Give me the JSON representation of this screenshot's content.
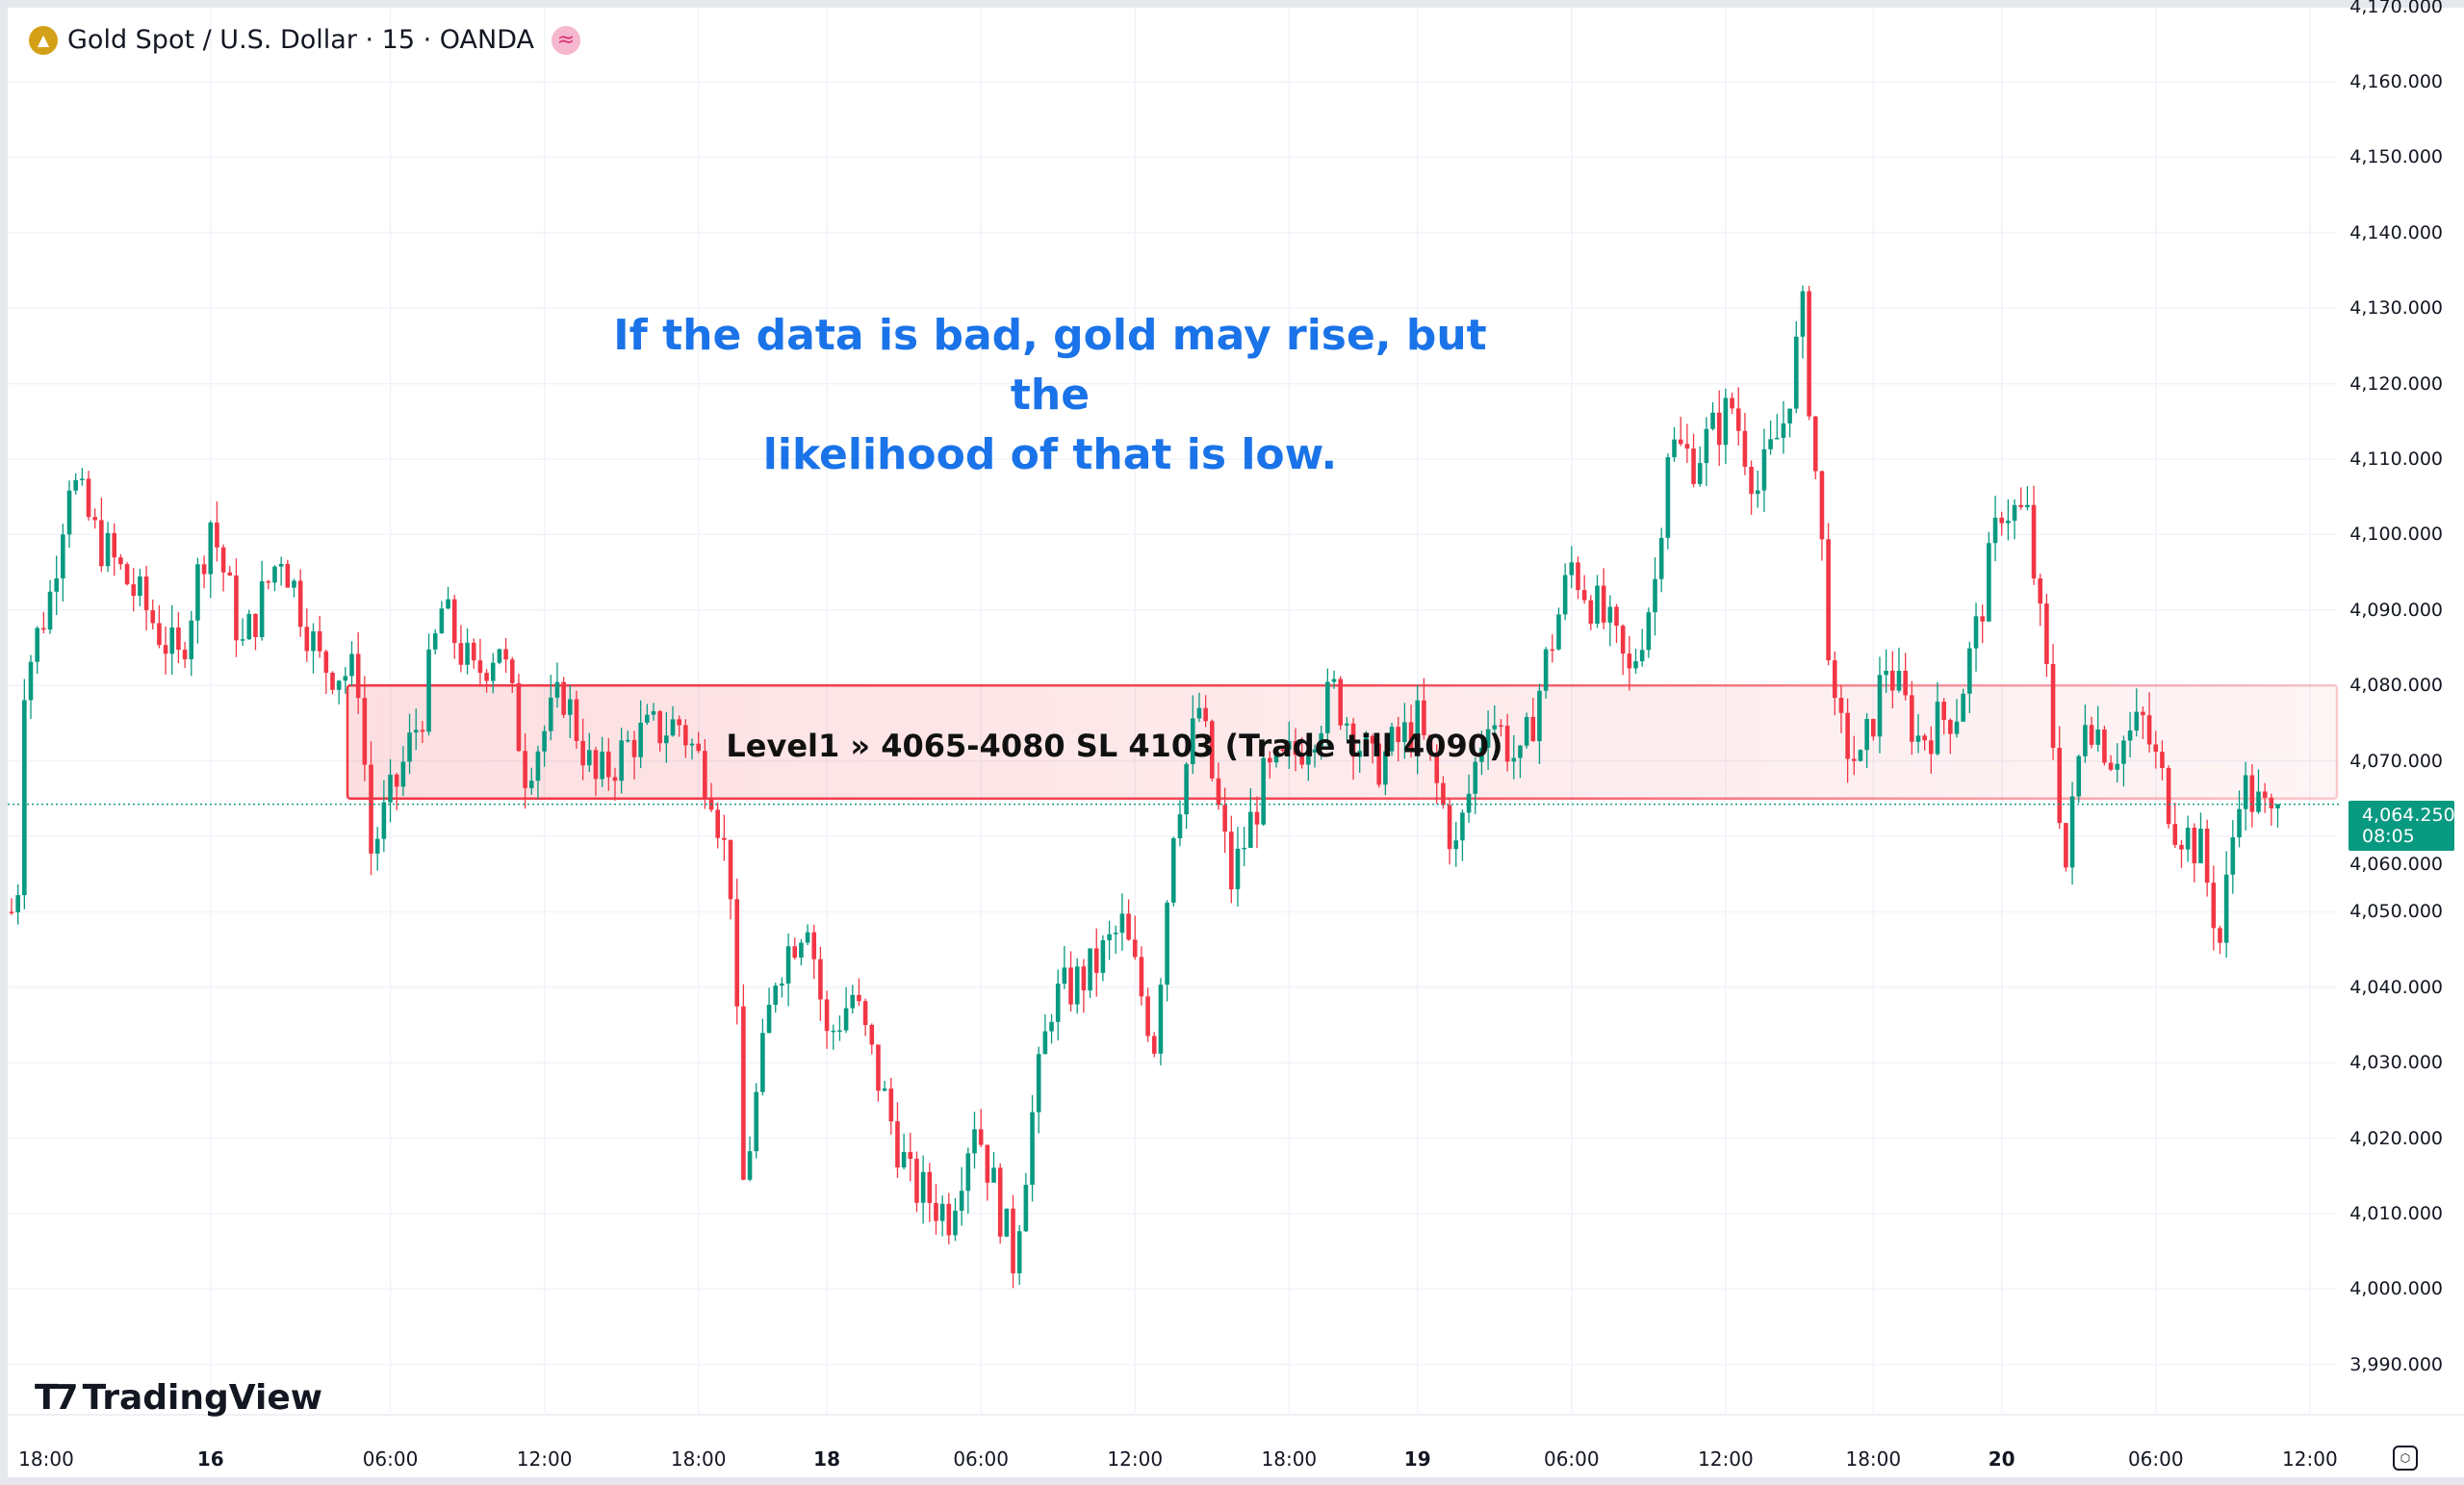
{
  "header": {
    "symbol_title": "Gold Spot / U.S. Dollar · 15 · OANDA",
    "gold_icon": "gold-bars-icon",
    "status_icon": "approx-wave-icon"
  },
  "annotation": {
    "line1": "If the data is bad, gold may rise, but the",
    "line2": "likelihood of that is low."
  },
  "zone": {
    "label": "Level1 » 4065-4080 SL 4103 (Trade till 4090)",
    "low": 4065,
    "high": 4080,
    "color": "#f23645"
  },
  "last_price": {
    "price": "4,064.250",
    "countdown": "08:05",
    "value": 4064.25,
    "color": "#089981"
  },
  "price_axis": [
    "4,170.000",
    "4,160.000",
    "4,150.000",
    "4,140.000",
    "4,130.000",
    "4,120.000",
    "4,110.000",
    "4,100.000",
    "4,090.000",
    "4,080.000",
    "4,070.000",
    "4,060.000",
    "4,050.000",
    "4,040.000",
    "4,030.000",
    "4,020.000",
    "4,010.000",
    "4,000.000",
    "3,990.000"
  ],
  "time_axis": [
    {
      "label": "18:00",
      "bar": -9,
      "day": false
    },
    {
      "label": "16",
      "bar": 31,
      "day": true
    },
    {
      "label": "06:00",
      "bar": 59,
      "day": false
    },
    {
      "label": "12:00",
      "bar": 83,
      "day": false
    },
    {
      "label": "18:00",
      "bar": 107,
      "day": false
    },
    {
      "label": "18",
      "bar": 127,
      "day": true
    },
    {
      "label": "06:00",
      "bar": 151,
      "day": false
    },
    {
      "label": "12:00",
      "bar": 175,
      "day": false
    },
    {
      "label": "18:00",
      "bar": 199,
      "day": false
    },
    {
      "label": "19",
      "bar": 219,
      "day": true
    },
    {
      "label": "06:00",
      "bar": 243,
      "day": false
    },
    {
      "label": "12:00",
      "bar": 267,
      "day": false
    },
    {
      "label": "18:00",
      "bar": 290,
      "day": false
    },
    {
      "label": "20",
      "bar": 310,
      "day": true
    },
    {
      "label": "06:00",
      "bar": 334,
      "day": false
    },
    {
      "label": "12:00",
      "bar": 358,
      "day": false
    }
  ],
  "logo": {
    "text": "TradingView"
  },
  "colors": {
    "up": "#089981",
    "down": "#f23645",
    "note": "#1a73e8"
  },
  "chart_data": {
    "type": "candlestick",
    "title": "Gold Spot / U.S. Dollar · 15 · OANDA",
    "ylim": [
      3985,
      4172
    ],
    "close_path": [
      [
        0,
        4050
      ],
      [
        1,
        4054
      ],
      [
        2,
        4081
      ],
      [
        6,
        4092
      ],
      [
        9,
        4108
      ],
      [
        13,
        4100
      ],
      [
        21,
        4090
      ],
      [
        26,
        4083
      ],
      [
        31,
        4102
      ],
      [
        36,
        4085
      ],
      [
        42,
        4098
      ],
      [
        48,
        4083
      ],
      [
        54,
        4081
      ],
      [
        56,
        4058
      ],
      [
        60,
        4067
      ],
      [
        64,
        4077
      ],
      [
        67,
        4090
      ],
      [
        72,
        4081
      ],
      [
        76,
        4086
      ],
      [
        80,
        4069
      ],
      [
        86,
        4079
      ],
      [
        91,
        4067
      ],
      [
        97,
        4073
      ],
      [
        104,
        4075
      ],
      [
        109,
        4067
      ],
      [
        112,
        4054
      ],
      [
        114,
        4014
      ],
      [
        119,
        4042
      ],
      [
        124,
        4050
      ],
      [
        127,
        4033
      ],
      [
        131,
        4039
      ],
      [
        136,
        4025
      ],
      [
        140,
        4014
      ],
      [
        146,
        4010
      ],
      [
        150,
        4023
      ],
      [
        156,
        4004
      ],
      [
        159,
        4023
      ],
      [
        162,
        4038
      ],
      [
        168,
        4042
      ],
      [
        173,
        4048
      ],
      [
        178,
        4033
      ],
      [
        181,
        4062
      ],
      [
        185,
        4077
      ],
      [
        190,
        4054
      ],
      [
        195,
        4067
      ],
      [
        200,
        4071
      ],
      [
        206,
        4079
      ],
      [
        212,
        4069
      ],
      [
        219,
        4075
      ],
      [
        225,
        4058
      ],
      [
        230,
        4077
      ],
      [
        235,
        4069
      ],
      [
        239,
        4083
      ],
      [
        243,
        4096
      ],
      [
        249,
        4087
      ],
      [
        252,
        4081
      ],
      [
        256,
        4094
      ],
      [
        258,
        4112
      ],
      [
        262,
        4110
      ],
      [
        268,
        4117
      ],
      [
        272,
        4106
      ],
      [
        276,
        4115
      ],
      [
        279,
        4129
      ],
      [
        282,
        4098
      ],
      [
        284,
        4075
      ],
      [
        288,
        4069
      ],
      [
        292,
        4083
      ],
      [
        297,
        4073
      ],
      [
        303,
        4077
      ],
      [
        306,
        4087
      ],
      [
        310,
        4104
      ],
      [
        314,
        4102
      ],
      [
        317,
        4081
      ],
      [
        320,
        4056
      ],
      [
        323,
        4077
      ],
      [
        327,
        4071
      ],
      [
        332,
        4075
      ],
      [
        337,
        4062
      ],
      [
        341,
        4058
      ],
      [
        344,
        4046
      ],
      [
        347,
        4067
      ],
      [
        352,
        4062
      ],
      [
        353,
        4064.25
      ]
    ]
  }
}
